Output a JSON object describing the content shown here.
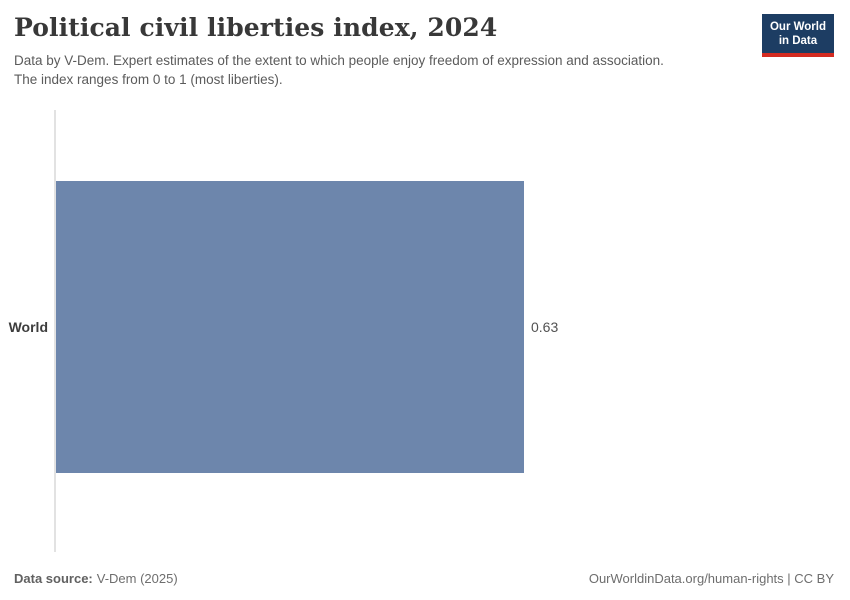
{
  "header": {
    "title": "Political civil liberties index, 2024",
    "subtitle_lines": [
      "Data by V-Dem. Expert estimates of the extent to which people enjoy freedom of expression and association.",
      "The index ranges from 0 to 1 (most liberties)."
    ],
    "logo_lines": [
      "Our World",
      "in Data"
    ]
  },
  "chart_data": {
    "type": "bar",
    "orientation": "horizontal",
    "title": "Political civil liberties index, 2024",
    "categories": [
      "World"
    ],
    "values": [
      0.63
    ],
    "value_labels": [
      "0.63"
    ],
    "xlim": [
      0,
      1
    ],
    "grid": false,
    "bar_color": "#6d86ac"
  },
  "footer": {
    "data_source_label": "Data source:",
    "data_source_value": "V-Dem (2025)",
    "note": "OurWorldinData.org/human-rights | CC BY"
  },
  "colors": {
    "bar": "#6d86ac",
    "logo_navy": "#1d3d63",
    "logo_red": "#d42b21",
    "axis_line": "#e2e2e2",
    "title_text": "#383838",
    "subtitle_text": "#5b5b5b"
  }
}
